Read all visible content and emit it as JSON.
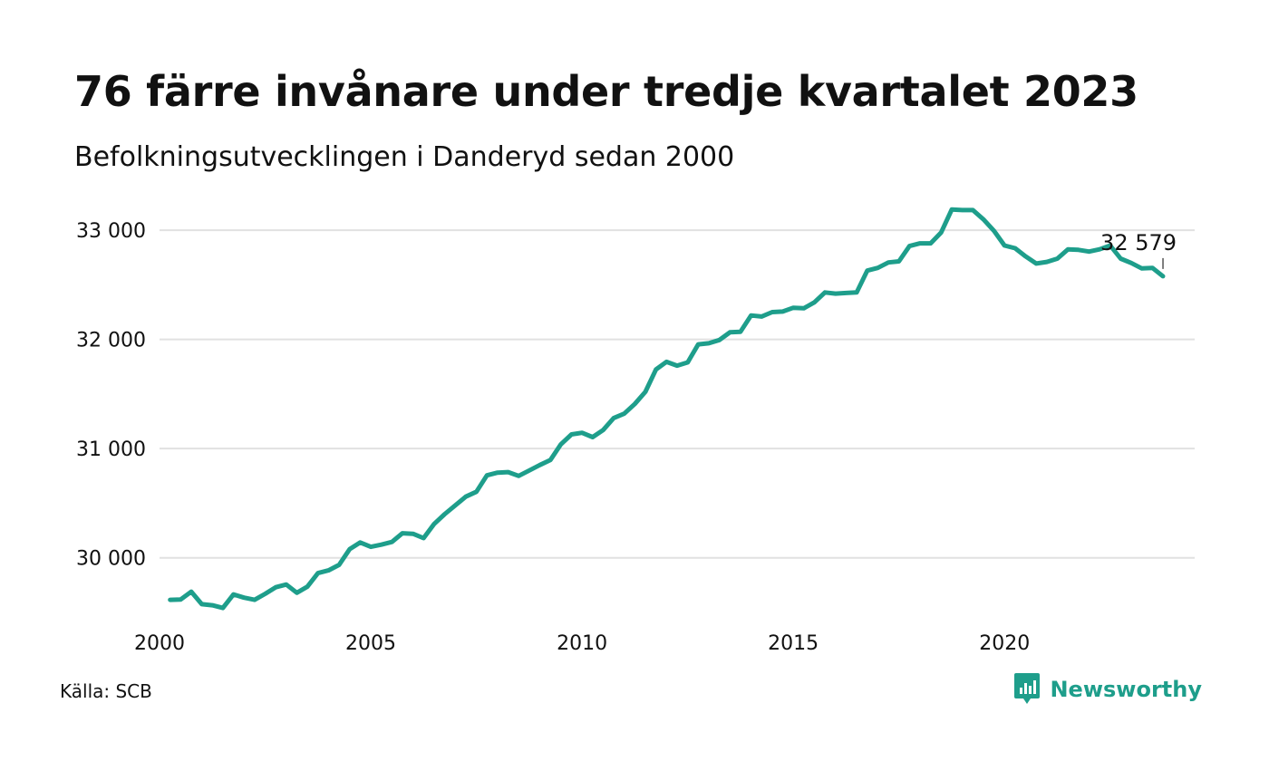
{
  "header": {
    "title": "76 färre invånare under tredje kvartalet 2023",
    "subtitle": "Befolkningsutvecklingen i Danderyd sedan 2000"
  },
  "footer": {
    "source": "Källa: SCB",
    "brand": "Newsworthy",
    "brand_icon": "bar-chart-speech-bubble-icon"
  },
  "colors": {
    "line": "#1e9e8b",
    "grid": "#e1e1e1",
    "text": "#111111",
    "brand": "#1e9e8b"
  },
  "chart_data": {
    "type": "line",
    "title": "76 färre invånare under tredje kvartalet 2023",
    "subtitle": "Befolkningsutvecklingen i Danderyd sedan 2000",
    "xlabel": "",
    "ylabel": "",
    "xlim": [
      2000,
      2024.5
    ],
    "ylim": [
      29400,
      33300
    ],
    "x_ticks": [
      {
        "value": 2000,
        "label": "2000"
      },
      {
        "value": 2005,
        "label": "2005"
      },
      {
        "value": 2010,
        "label": "2010"
      },
      {
        "value": 2015,
        "label": "2015"
      },
      {
        "value": 2020,
        "label": "2020"
      }
    ],
    "y_ticks": [
      {
        "value": 30000,
        "label": "30 000"
      },
      {
        "value": 31000,
        "label": "31 000"
      },
      {
        "value": 32000,
        "label": "32 000"
      },
      {
        "value": 33000,
        "label": "33 000"
      }
    ],
    "grid": true,
    "legend": "none",
    "series": [
      {
        "x": [
          2000.25,
          2000.5,
          2000.75,
          2001.0,
          2001.25,
          2001.5,
          2001.75,
          2002.0,
          2002.25,
          2002.5,
          2002.75,
          2003.0,
          2003.25,
          2003.5,
          2003.75,
          2004.0,
          2004.25,
          2004.5,
          2004.75,
          2005.0,
          2005.25,
          2005.5,
          2005.75,
          2006.0,
          2006.25,
          2006.5,
          2006.75,
          2007.0,
          2007.25,
          2007.5,
          2007.75,
          2008.0,
          2008.25,
          2008.5,
          2008.75,
          2009.0,
          2009.25,
          2009.5,
          2009.75,
          2010.0,
          2010.25,
          2010.5,
          2010.75,
          2011.0,
          2011.25,
          2011.5,
          2011.75,
          2012.0,
          2012.25,
          2012.5,
          2012.75,
          2013.0,
          2013.25,
          2013.5,
          2013.75,
          2014.0,
          2014.25,
          2014.5,
          2014.75,
          2015.0,
          2015.25,
          2015.5,
          2015.75,
          2016.0,
          2016.25,
          2016.5,
          2016.75,
          2017.0,
          2017.25,
          2017.5,
          2017.75,
          2018.0,
          2018.25,
          2018.5,
          2018.75,
          2019.0,
          2019.25,
          2019.5,
          2019.75,
          2020.0,
          2020.25,
          2020.5,
          2020.75,
          2021.0,
          2021.25,
          2021.5,
          2021.75,
          2022.0,
          2022.25,
          2022.5,
          2022.75,
          2023.0,
          2023.25,
          2023.5,
          2023.75
        ],
        "y": [
          29615,
          29617,
          29690,
          29575,
          29565,
          29540,
          29665,
          29635,
          29615,
          29670,
          29730,
          29755,
          29680,
          29735,
          29860,
          29885,
          29935,
          30080,
          30140,
          30100,
          30120,
          30145,
          30225,
          30220,
          30180,
          30310,
          30400,
          30480,
          30560,
          30605,
          30755,
          30780,
          30785,
          30750,
          30800,
          30850,
          30895,
          31040,
          31130,
          31145,
          31105,
          31170,
          31280,
          31320,
          31410,
          31520,
          31725,
          31795,
          31760,
          31790,
          31955,
          31965,
          31995,
          32065,
          32070,
          32220,
          32210,
          32250,
          32255,
          32290,
          32285,
          32340,
          32430,
          32420,
          32425,
          32430,
          32630,
          32655,
          32705,
          32715,
          32855,
          32880,
          32880,
          32980,
          33190,
          33185,
          33185,
          33100,
          32995,
          32860,
          32835,
          32760,
          32695,
          32710,
          32740,
          32825,
          32820,
          32805,
          32825,
          32860,
          32740,
          32700,
          32650,
          32655,
          32579
        ]
      }
    ],
    "annotations": [
      {
        "x": 2023.75,
        "y": 32579,
        "label": "32 579"
      }
    ]
  }
}
